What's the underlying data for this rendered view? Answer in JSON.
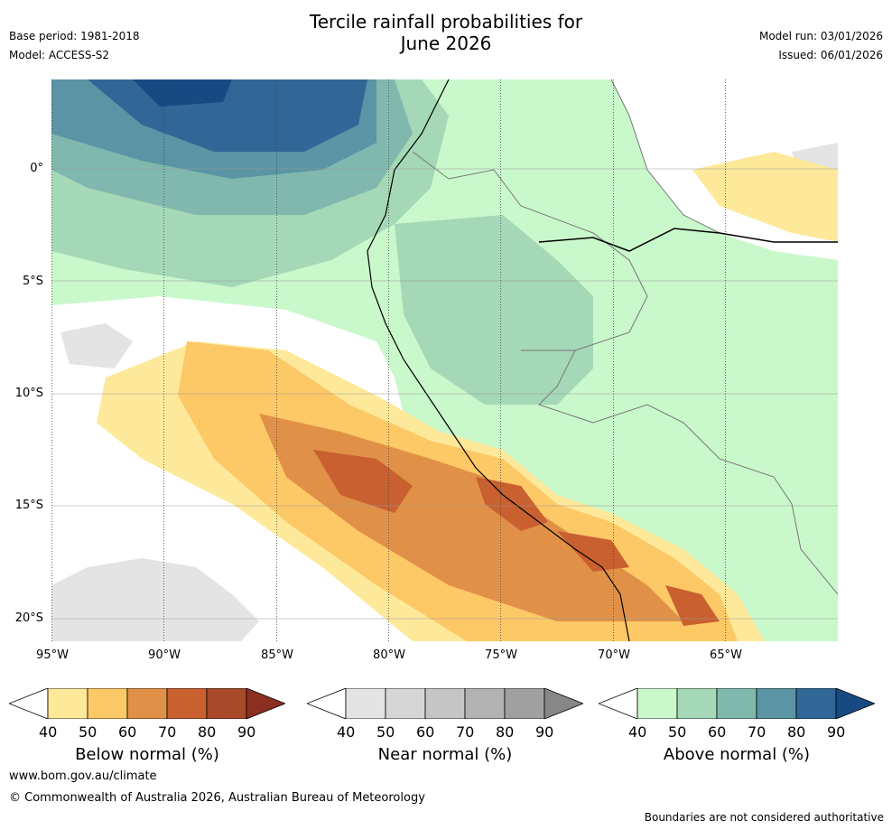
{
  "header": {
    "title_line1": "Tercile rainfall probabilities for",
    "title_line2": "June 2026",
    "base_period": "Base period: 1981-2018",
    "model": "Model: ACCESS-S2",
    "model_run": "Model run: 03/01/2026",
    "issued": "Issued: 06/01/2026"
  },
  "map": {
    "lat_labels": [
      "0°",
      "5°S",
      "10°S",
      "15°S",
      "20°S"
    ],
    "lon_labels": [
      "95°W",
      "90°W",
      "85°W",
      "80°W",
      "75°W",
      "70°W",
      "65°W"
    ]
  },
  "colorbars": [
    {
      "title": "Below normal (%)",
      "ticks": [
        "40",
        "50",
        "60",
        "70",
        "80",
        "90"
      ],
      "colors": [
        "#fee99a",
        "#fdc866",
        "#e09147",
        "#c9602f",
        "#a8492a"
      ],
      "arrow_color": "#8b2f20"
    },
    {
      "title": "Near normal (%)",
      "ticks": [
        "40",
        "50",
        "60",
        "70",
        "80",
        "90"
      ],
      "colors": [
        "#e4e4e4",
        "#d6d6d6",
        "#c5c5c5",
        "#b2b2b2",
        "#a0a0a0"
      ],
      "arrow_color": "#878787"
    },
    {
      "title": "Above normal (%)",
      "ticks": [
        "40",
        "50",
        "60",
        "70",
        "80",
        "90"
      ],
      "colors": [
        "#c9f8cb",
        "#a4d8b7",
        "#80b8ad",
        "#5a94a5",
        "#306797"
      ],
      "arrow_color": "#174a82"
    }
  ],
  "footer": {
    "website": "www.bom.gov.au/climate",
    "copyright": "© Commonwealth of Australia 2026, Australian Bureau of Meteorology",
    "disclaimer": "Boundaries are not considered authoritative"
  }
}
